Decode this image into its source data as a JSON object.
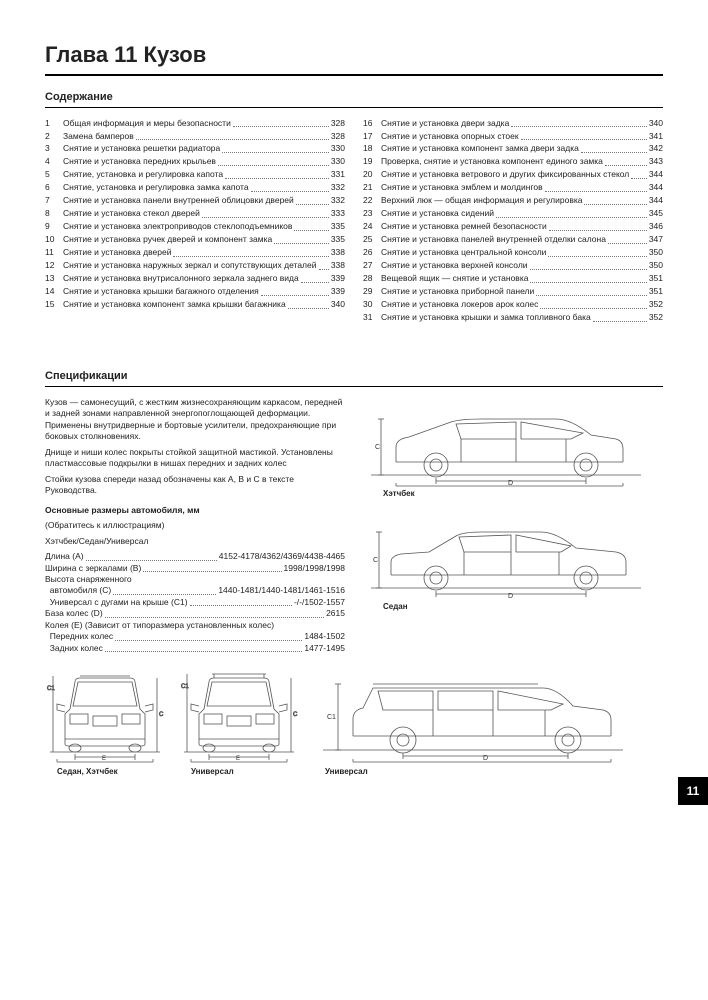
{
  "chapter_title": "Глава 11 Кузов",
  "toc_heading": "Содержание",
  "spec_heading": "Спецификации",
  "chapter_tab": "11",
  "toc_left": [
    {
      "n": "1",
      "t": "Общая информация и меры безопасности",
      "p": "328"
    },
    {
      "n": "2",
      "t": "Замена бамперов",
      "p": "328"
    },
    {
      "n": "3",
      "t": "Снятие и установка решетки радиатора",
      "p": "330"
    },
    {
      "n": "4",
      "t": "Снятие и установка передних крыльев",
      "p": "330"
    },
    {
      "n": "5",
      "t": "Снятие, установка и регулировка капота",
      "p": "331"
    },
    {
      "n": "6",
      "t": "Снятие, установка и регулировка замка капота",
      "p": "332"
    },
    {
      "n": "7",
      "t": "Снятие и установка панели внутренней облицовки дверей",
      "p": "332"
    },
    {
      "n": "8",
      "t": "Снятие и установка стекол дверей",
      "p": "333"
    },
    {
      "n": "9",
      "t": "Снятие и установка электроприводов стеклоподъемников",
      "p": "335"
    },
    {
      "n": "10",
      "t": "Снятие и установка ручек дверей и компонент замка",
      "p": "335"
    },
    {
      "n": "11",
      "t": "Снятие и установка дверей",
      "p": "338"
    },
    {
      "n": "12",
      "t": "Снятие и установка наружных зеркал и сопутствующих деталей",
      "p": "338"
    },
    {
      "n": "13",
      "t": "Снятие и установка внутрисалонного зеркала заднего вида",
      "p": "339"
    },
    {
      "n": "14",
      "t": "Снятие и установка крышки багажного отделения",
      "p": "339"
    },
    {
      "n": "15",
      "t": "Снятие и установка компонент замка крышки багажника",
      "p": "340"
    }
  ],
  "toc_right": [
    {
      "n": "16",
      "t": "Снятие и установка двери задка",
      "p": "340"
    },
    {
      "n": "17",
      "t": "Снятие и установка опорных стоек",
      "p": "341"
    },
    {
      "n": "18",
      "t": "Снятие и установка компонент замка двери задка",
      "p": "342"
    },
    {
      "n": "19",
      "t": "Проверка, снятие и установка компонент единого замка",
      "p": "343"
    },
    {
      "n": "20",
      "t": "Снятие и установка ветрового и других фиксированных стекол",
      "p": "344"
    },
    {
      "n": "21",
      "t": "Снятие и установка эмблем и молдингов",
      "p": "344"
    },
    {
      "n": "22",
      "t": "Верхний люк — общая информация и регулировка",
      "p": "344"
    },
    {
      "n": "23",
      "t": "Снятие и установка сидений",
      "p": "345"
    },
    {
      "n": "24",
      "t": "Снятие и установка ремней безопасности",
      "p": "346"
    },
    {
      "n": "25",
      "t": "Снятие и установка панелей внутренней отделки салона",
      "p": "347"
    },
    {
      "n": "26",
      "t": "Снятие и установка центральной консоли",
      "p": "350"
    },
    {
      "n": "27",
      "t": "Снятие и установка верхней консоли",
      "p": "350"
    },
    {
      "n": "28",
      "t": "Вещевой ящик — снятие и установка",
      "p": "351"
    },
    {
      "n": "29",
      "t": "Снятие и установка приборной панели",
      "p": "351"
    },
    {
      "n": "30",
      "t": "Снятие и установка локеров арок колес",
      "p": "352"
    },
    {
      "n": "31",
      "t": "Снятие и установка крышки и замка топливного бака",
      "p": "352"
    }
  ],
  "spec_text1": "Кузов — самонесущий, с жестким жизнесохраняющим каркасом, передней и задней зонами направленной энергопоглощающей деформации. Применены внутридверные и бортовые усилители, предохраняющие при боковых столкновениях.",
  "spec_text2": "Днище и ниши колес покрыты стойкой защитной мастикой. Установлены пластмассовые подкрылки в нишах передних и задних колес",
  "spec_text3": "Стойки кузова спереди назад обозначены как A, B и C в тексте Руководства.",
  "dims_heading": "Основные размеры автомобиля, мм",
  "dims_note": "(Обратитесь к иллюстрациям)",
  "dims_line1": "Хэтчбек/Седан/Универсал",
  "dims": [
    {
      "l": "Длина (A)",
      "v": "4152-4178/4362/4369/4438-4465"
    },
    {
      "l": "Ширина с зеркалами (B)",
      "v": "1998/1998/1998"
    },
    {
      "l": "Высота снаряженного",
      "v": ""
    },
    {
      "l": "  автомобиля (C)",
      "v": "1440-1481/1440-1481/1461-1516"
    },
    {
      "l": "  Универсал с дугами на крыше (C1)",
      "v": "-/-/1502-1557"
    },
    {
      "l": "База колес (D)",
      "v": "2615"
    },
    {
      "l": "Колея (E) (Зависит от типоразмера установленных колес)",
      "v": ""
    },
    {
      "l": "  Передних колес",
      "v": "1484-1502"
    },
    {
      "l": "  Задних колес",
      "v": "1477-1495"
    }
  ],
  "car_captions": {
    "hatch": "Хэтчбек",
    "sedan": "Седан",
    "wagon": "Универсал",
    "front": "Седан, Хэтчбек",
    "front2": "Универсал"
  },
  "colors": {
    "line": "#444444",
    "dim": "#666666",
    "fill": "#ffffff"
  }
}
